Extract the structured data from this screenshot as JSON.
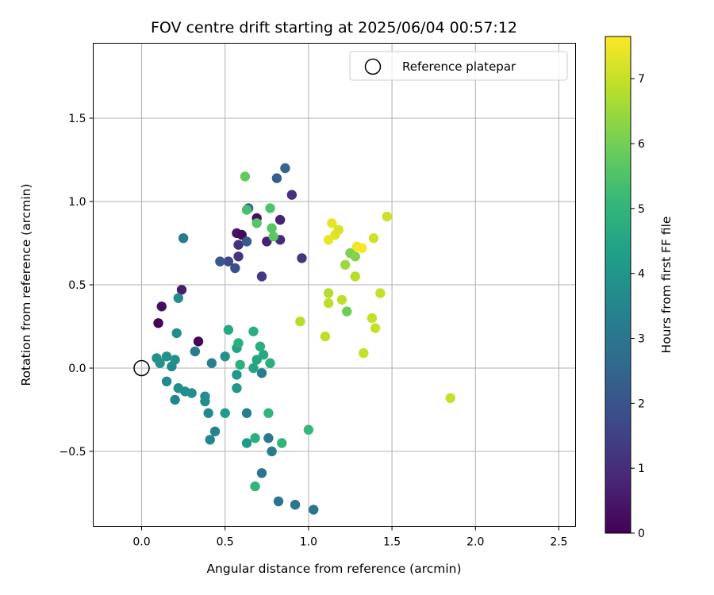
{
  "chart_data": {
    "type": "scatter",
    "title": "FOV centre drift starting at 2025/06/04 00:57:12",
    "xlabel": "Angular distance from reference (arcmin)",
    "ylabel": "Rotation from reference (arcmin)",
    "xlim": [
      -0.29,
      2.6
    ],
    "ylim": [
      -0.95,
      1.95
    ],
    "xticks": [
      0.0,
      0.5,
      1.0,
      1.5,
      2.0,
      2.5
    ],
    "xtick_labels": [
      "0.0",
      "0.5",
      "1.0",
      "1.5",
      "2.0",
      "2.5"
    ],
    "yticks": [
      -0.5,
      0.0,
      0.5,
      1.0,
      1.5
    ],
    "ytick_labels": [
      "−0.5",
      "0.0",
      "0.5",
      "1.0",
      "1.5"
    ],
    "grid": true,
    "legend": {
      "location": "upper right",
      "entries": [
        "Reference platepar"
      ]
    },
    "reference_point": {
      "label": "Reference platepar",
      "x": 0.0,
      "y": 0.0
    },
    "colorbar": {
      "label": "Hours from first FF file",
      "colormap": "viridis",
      "range": [
        0,
        7.65
      ],
      "ticks": [
        0,
        1,
        2,
        3,
        4,
        5,
        6,
        7
      ],
      "tick_labels": [
        "0",
        "1",
        "2",
        "3",
        "4",
        "5",
        "6",
        "7"
      ]
    },
    "series": [
      {
        "columns": [
          "x",
          "y",
          "hours"
        ],
        "points": [
          [
            0.1,
            0.27,
            0.05
          ],
          [
            0.34,
            0.16,
            0.1
          ],
          [
            0.12,
            0.37,
            0.3
          ],
          [
            0.24,
            0.47,
            0.6
          ],
          [
            0.57,
            0.81,
            0.4
          ],
          [
            0.6,
            0.8,
            0.2
          ],
          [
            0.69,
            0.9,
            0.3
          ],
          [
            0.83,
            0.89,
            0.7
          ],
          [
            0.75,
            0.76,
            0.7
          ],
          [
            0.83,
            0.77,
            0.9
          ],
          [
            0.58,
            0.74,
            1.1
          ],
          [
            0.58,
            0.67,
            1.2
          ],
          [
            0.9,
            1.04,
            1.1
          ],
          [
            0.96,
            0.66,
            1.2
          ],
          [
            0.72,
            0.55,
            1.3
          ],
          [
            0.52,
            0.64,
            1.7
          ],
          [
            0.47,
            0.64,
            2.1
          ],
          [
            0.56,
            0.6,
            1.9
          ],
          [
            0.64,
            0.96,
            2.4
          ],
          [
            0.63,
            0.76,
            2.2
          ],
          [
            0.81,
            1.14,
            2.3
          ],
          [
            0.86,
            1.2,
            2.5
          ],
          [
            0.72,
            -0.63,
            2.9
          ],
          [
            0.82,
            -0.8,
            2.9
          ],
          [
            0.92,
            -0.82,
            3.0
          ],
          [
            1.03,
            -0.85,
            3.0
          ],
          [
            0.76,
            -0.42,
            3.1
          ],
          [
            0.78,
            -0.5,
            3.2
          ],
          [
            0.63,
            -0.27,
            3.3
          ],
          [
            0.72,
            -0.03,
            3.3
          ],
          [
            0.25,
            0.78,
            3.2
          ],
          [
            0.32,
            0.1,
            3.2
          ],
          [
            0.42,
            0.03,
            3.3
          ],
          [
            0.44,
            -0.38,
            3.4
          ],
          [
            0.41,
            -0.43,
            3.5
          ],
          [
            0.4,
            -0.27,
            3.6
          ],
          [
            0.38,
            -0.17,
            3.7
          ],
          [
            0.38,
            -0.2,
            3.7
          ],
          [
            0.3,
            -0.15,
            3.8
          ],
          [
            0.26,
            -0.14,
            3.8
          ],
          [
            0.22,
            -0.12,
            3.8
          ],
          [
            0.15,
            -0.08,
            3.6
          ],
          [
            0.2,
            -0.19,
            3.5
          ],
          [
            0.18,
            0.01,
            3.6
          ],
          [
            0.2,
            0.05,
            3.8
          ],
          [
            0.21,
            0.21,
            3.8
          ],
          [
            0.22,
            0.42,
            3.7
          ],
          [
            0.09,
            0.06,
            3.8
          ],
          [
            0.11,
            0.03,
            3.9
          ],
          [
            0.15,
            0.07,
            3.9
          ],
          [
            0.5,
            0.07,
            3.9
          ],
          [
            0.57,
            -0.04,
            4.0
          ],
          [
            0.57,
            -0.12,
            4.1
          ],
          [
            0.5,
            -0.27,
            4.2
          ],
          [
            0.63,
            -0.45,
            4.2
          ],
          [
            0.57,
            0.12,
            4.4
          ],
          [
            0.67,
            0.0,
            4.5
          ],
          [
            0.69,
            0.05,
            4.5
          ],
          [
            0.73,
            0.08,
            4.6
          ],
          [
            0.77,
            0.03,
            4.8
          ],
          [
            0.71,
            0.13,
            4.7
          ],
          [
            0.58,
            0.15,
            4.8
          ],
          [
            0.59,
            0.02,
            4.8
          ],
          [
            0.52,
            0.23,
            4.6
          ],
          [
            0.67,
            0.22,
            4.8
          ],
          [
            0.68,
            -0.42,
            4.8
          ],
          [
            0.68,
            -0.71,
            5.0
          ],
          [
            0.84,
            -0.45,
            5.0
          ],
          [
            0.76,
            -0.27,
            5.0
          ],
          [
            1.0,
            -0.37,
            5.1
          ],
          [
            0.63,
            0.95,
            5.4
          ],
          [
            0.77,
            0.96,
            5.5
          ],
          [
            0.69,
            0.87,
            5.6
          ],
          [
            0.78,
            0.84,
            5.6
          ],
          [
            0.79,
            0.79,
            5.7
          ],
          [
            0.62,
            1.15,
            5.8
          ],
          [
            1.23,
            0.34,
            5.9
          ],
          [
            1.25,
            0.69,
            6.1
          ],
          [
            1.28,
            0.67,
            6.2
          ],
          [
            1.22,
            0.62,
            6.5
          ],
          [
            1.28,
            0.55,
            6.8
          ],
          [
            1.12,
            0.45,
            6.8
          ],
          [
            1.12,
            0.39,
            6.9
          ],
          [
            1.2,
            0.41,
            6.9
          ],
          [
            1.1,
            0.19,
            6.9
          ],
          [
            0.95,
            0.28,
            6.8
          ],
          [
            1.33,
            0.09,
            7.0
          ],
          [
            1.38,
            0.3,
            7.0
          ],
          [
            1.4,
            0.24,
            7.0
          ],
          [
            1.43,
            0.45,
            7.0
          ],
          [
            1.39,
            0.78,
            7.1
          ],
          [
            1.47,
            0.91,
            7.1
          ],
          [
            1.85,
            -0.18,
            7.0
          ],
          [
            1.18,
            0.83,
            7.2
          ],
          [
            1.16,
            0.8,
            7.3
          ],
          [
            1.12,
            0.77,
            7.4
          ],
          [
            1.14,
            0.87,
            7.4
          ],
          [
            1.29,
            0.73,
            7.5
          ],
          [
            1.32,
            0.72,
            7.6
          ]
        ]
      }
    ]
  }
}
